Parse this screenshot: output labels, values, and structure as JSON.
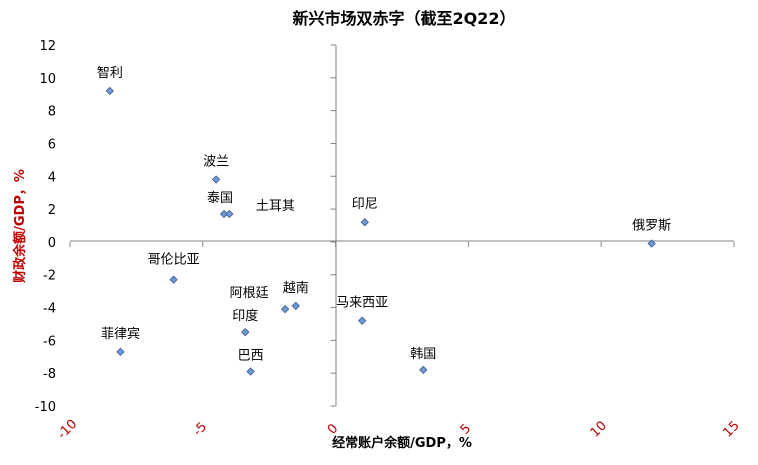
{
  "chart_data": {
    "type": "scatter",
    "title": "新兴市场双赤字（截至2Q22）",
    "xlabel": "经常账户余额/GDP，%",
    "ylabel": "财政余额/GDP，%",
    "xlim": [
      -10,
      15
    ],
    "ylim": [
      -10,
      12
    ],
    "x_ticks": [
      -10,
      -5,
      0,
      5,
      10,
      15
    ],
    "y_ticks": [
      -10,
      -8,
      -6,
      -4,
      -2,
      0,
      2,
      4,
      6,
      8,
      10,
      12
    ],
    "grid": false,
    "legend": "none",
    "colors": {
      "x_tick_labels": "#c00000",
      "y_tick_labels": "#000000",
      "ylabel": "#c00000",
      "xlabel": "#000000",
      "marker_fill": "#6f98d6",
      "marker_stroke": "#3b5f94"
    },
    "points": [
      {
        "label": "智利",
        "x": -8.5,
        "y": 9.2
      },
      {
        "label": "波兰",
        "x": -4.5,
        "y": 3.8
      },
      {
        "label": "泰国",
        "x": -4.2,
        "y": 1.7
      },
      {
        "label": "土耳其",
        "x": -4.0,
        "y": 1.7
      },
      {
        "label": "印尼",
        "x": 1.1,
        "y": 1.2
      },
      {
        "label": "俄罗斯",
        "x": 11.9,
        "y": -0.1
      },
      {
        "label": "哥伦比亚",
        "x": -6.1,
        "y": -2.3
      },
      {
        "label": "阿根廷",
        "x": -1.9,
        "y": -4.1
      },
      {
        "label": "越南",
        "x": -1.5,
        "y": -3.9
      },
      {
        "label": "马来西亚",
        "x": 1.0,
        "y": -4.8
      },
      {
        "label": "印度",
        "x": -3.4,
        "y": -5.5
      },
      {
        "label": "菲律宾",
        "x": -8.1,
        "y": -6.7
      },
      {
        "label": "巴西",
        "x": -3.2,
        "y": -7.9
      },
      {
        "label": "韩国",
        "x": 3.3,
        "y": -7.8
      }
    ]
  }
}
